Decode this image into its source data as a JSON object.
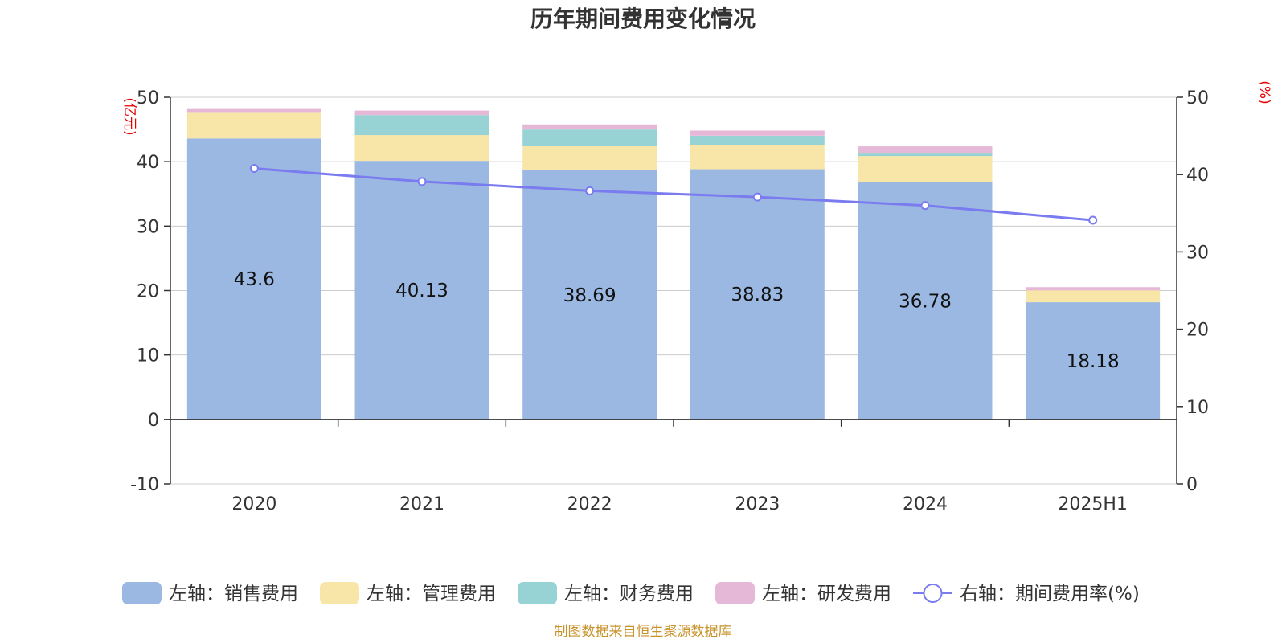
{
  "chart_data": {
    "type": "bar",
    "title": "历年期间费用变化情况",
    "categories": [
      "2020",
      "2021",
      "2022",
      "2023",
      "2024",
      "2025H1"
    ],
    "left_axis": {
      "unit": "(亿元)",
      "ylim": [
        -10,
        50
      ],
      "ticks": [
        "-10",
        "0",
        "10",
        "20",
        "30",
        "40",
        "50"
      ]
    },
    "right_axis": {
      "unit": "(%)",
      "ylim": [
        0,
        50
      ],
      "ticks": [
        "0",
        "10",
        "20",
        "30",
        "40",
        "50"
      ]
    },
    "series": [
      {
        "name": "左轴：销售费用",
        "axis": "left",
        "type": "bar",
        "stack": true,
        "color": "#9bb8e2",
        "values": [
          43.6,
          40.13,
          38.69,
          38.83,
          36.78,
          18.18
        ],
        "labels": [
          "43.6",
          "40.13",
          "38.69",
          "38.83",
          "36.78",
          "18.18"
        ]
      },
      {
        "name": "左轴：管理费用",
        "axis": "left",
        "type": "bar",
        "stack": true,
        "color": "#f8e6a8",
        "values": [
          4.1,
          4.0,
          3.7,
          3.8,
          4.1,
          1.85
        ]
      },
      {
        "name": "左轴：财务费用",
        "axis": "left",
        "type": "bar",
        "stack": true,
        "color": "#97d3d5",
        "values": [
          0.0,
          3.1,
          2.6,
          1.4,
          0.5,
          0.0
        ]
      },
      {
        "name": "左轴：研发费用",
        "axis": "left",
        "type": "bar",
        "stack": true,
        "color": "#e6b8d8",
        "values": [
          0.6,
          0.7,
          0.8,
          0.8,
          1.0,
          0.5
        ]
      },
      {
        "name": "右轴：期间费用率(%)",
        "axis": "right",
        "type": "line",
        "color": "#7b7bf0",
        "values": [
          40.8,
          39.1,
          37.9,
          37.1,
          36.0,
          34.1
        ]
      }
    ],
    "grid": true,
    "legend_position": "bottom"
  },
  "source_note": "制图数据来自恒生聚源数据库"
}
